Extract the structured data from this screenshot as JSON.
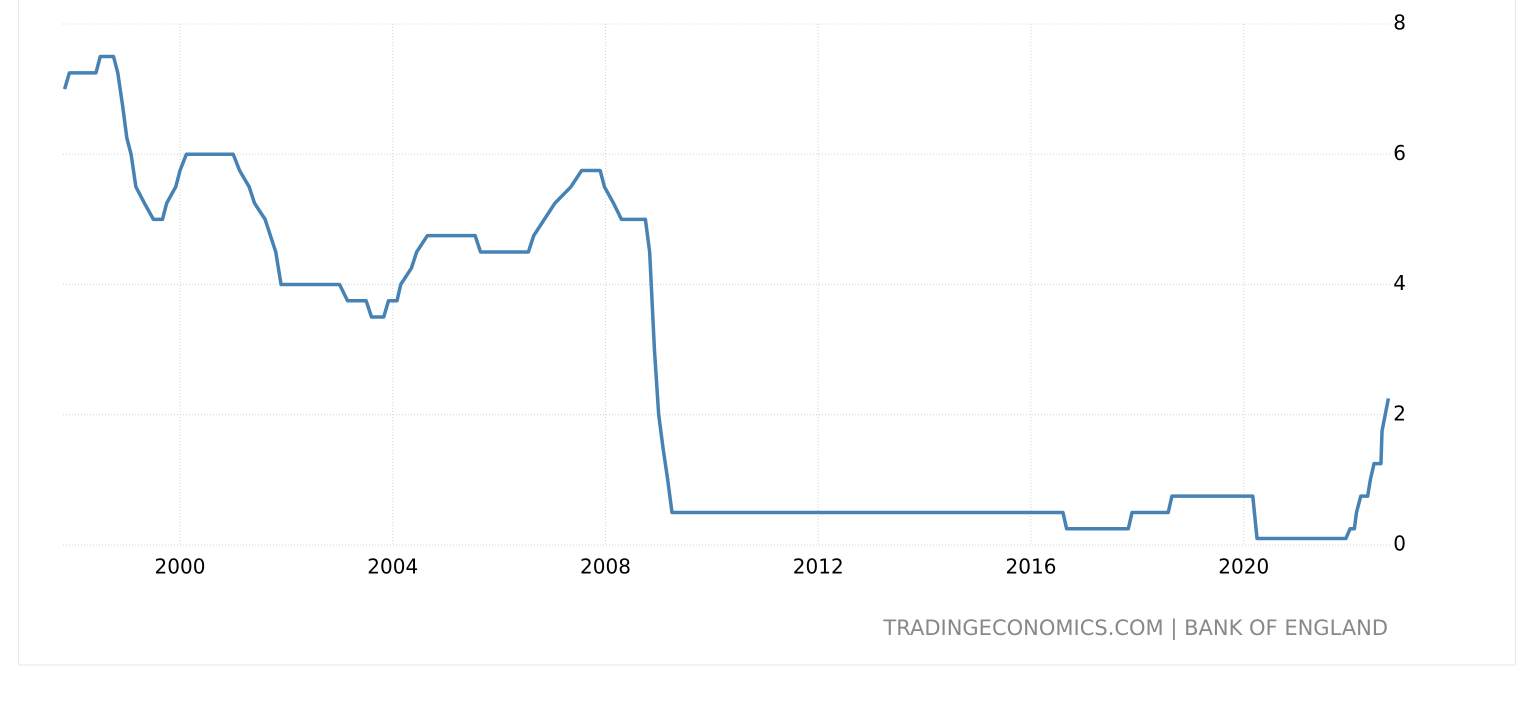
{
  "chart_data": {
    "type": "line",
    "source": "TRADINGECONOMICS.COM | BANK OF ENGLAND",
    "x": [
      1997.83,
      1997.92,
      1998.42,
      1998.5,
      1998.75,
      1998.83,
      1998.92,
      1999.0,
      1999.08,
      1999.17,
      1999.33,
      1999.5,
      1999.67,
      1999.75,
      1999.92,
      2000.0,
      2000.12,
      2001.0,
      2001.12,
      2001.3,
      2001.4,
      2001.6,
      2001.7,
      2001.8,
      2001.9,
      2003.0,
      2003.15,
      2003.5,
      2003.6,
      2003.83,
      2003.92,
      2004.08,
      2004.15,
      2004.35,
      2004.45,
      2004.65,
      2005.55,
      2005.65,
      2006.55,
      2006.65,
      2006.85,
      2007.05,
      2007.35,
      2007.55,
      2007.9,
      2007.98,
      2008.15,
      2008.3,
      2008.75,
      2008.83,
      2008.92,
      2009.0,
      2009.08,
      2009.17,
      2009.25,
      2016.6,
      2016.67,
      2017.83,
      2017.9,
      2018.58,
      2018.65,
      2020.17,
      2020.25,
      2021.92,
      2022.0,
      2022.08,
      2022.12,
      2022.2,
      2022.33,
      2022.38,
      2022.45,
      2022.58,
      2022.6,
      2022.72
    ],
    "series": [
      {
        "color": "#4682b4",
        "values": [
          7.0,
          7.25,
          7.25,
          7.5,
          7.5,
          7.25,
          6.75,
          6.25,
          6.0,
          5.5,
          5.25,
          5.0,
          5.0,
          5.25,
          5.5,
          5.75,
          6.0,
          6.0,
          5.75,
          5.5,
          5.25,
          5.0,
          4.75,
          4.5,
          4.0,
          4.0,
          3.75,
          3.75,
          3.5,
          3.5,
          3.75,
          3.75,
          4.0,
          4.25,
          4.5,
          4.75,
          4.75,
          4.5,
          4.5,
          4.75,
          5.0,
          5.25,
          5.5,
          5.75,
          5.75,
          5.5,
          5.25,
          5.0,
          5.0,
          4.5,
          3.0,
          2.0,
          1.5,
          1.0,
          0.5,
          0.5,
          0.25,
          0.25,
          0.5,
          0.5,
          0.75,
          0.75,
          0.1,
          0.1,
          0.25,
          0.25,
          0.5,
          0.75,
          0.75,
          1.0,
          1.25,
          1.25,
          1.75,
          2.25
        ]
      }
    ],
    "xlim": [
      1997.8,
      2022.75
    ],
    "xticks": [
      2000,
      2004,
      2008,
      2012,
      2016,
      2020
    ],
    "ylim": [
      0,
      8
    ],
    "yticks": [
      0,
      2,
      4,
      6,
      8
    ],
    "grid": true
  }
}
